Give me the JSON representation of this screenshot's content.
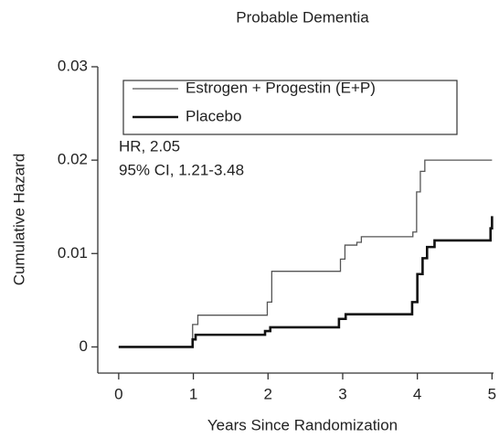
{
  "chart_data": {
    "type": "line",
    "title": "Probable Dementia",
    "x_label": "Years Since Randomization",
    "y_label": "Cumulative Hazard",
    "annotations": [
      "HR, 2.05",
      "95% CI, 1.21-3.48"
    ],
    "xlim": [
      -0.28,
      5.02
    ],
    "ylim": [
      -0.0028,
      0.03
    ],
    "xticks": [
      0,
      1,
      2,
      3,
      4,
      5
    ],
    "yticks": [
      0,
      0.01,
      0.02,
      0.03
    ],
    "legend": "upper left",
    "series": [
      {
        "name": "Estrogen + Progestin (E+P)",
        "color": "#555555",
        "width": 1.3,
        "x": [
          0,
          0.99,
          0.99,
          1.06,
          1.06,
          1.99,
          1.99,
          2.05,
          2.05,
          2.97,
          2.97,
          3.03,
          3.03,
          3.19,
          3.19,
          3.25,
          3.25,
          3.94,
          3.94,
          3.99,
          3.99,
          4.04,
          4.04,
          4.1,
          4.1,
          5.0
        ],
        "values": [
          0,
          0,
          0.0024,
          0.0024,
          0.0034,
          0.0034,
          0.0048,
          0.0048,
          0.0081,
          0.0081,
          0.0094,
          0.0094,
          0.0109,
          0.0109,
          0.0112,
          0.0112,
          0.0118,
          0.0118,
          0.0123,
          0.0123,
          0.0166,
          0.0166,
          0.0188,
          0.0188,
          0.02,
          0.02
        ]
      },
      {
        "name": "Placebo",
        "color": "#111111",
        "width": 2.6,
        "x": [
          0,
          0.99,
          0.99,
          1.03,
          1.03,
          1.96,
          1.96,
          2.03,
          2.03,
          2.95,
          2.95,
          3.04,
          3.04,
          3.93,
          3.93,
          4.0,
          4.0,
          4.07,
          4.07,
          4.13,
          4.13,
          4.23,
          4.23,
          4.98,
          4.98,
          5.0,
          5.0
        ],
        "values": [
          0,
          0,
          0.0008,
          0.0008,
          0.0013,
          0.0013,
          0.0017,
          0.0017,
          0.0021,
          0.0021,
          0.003,
          0.003,
          0.0035,
          0.0035,
          0.0048,
          0.0048,
          0.0078,
          0.0078,
          0.0095,
          0.0095,
          0.0107,
          0.0107,
          0.0114,
          0.0114,
          0.0127,
          0.0127,
          0.014
        ]
      }
    ]
  }
}
